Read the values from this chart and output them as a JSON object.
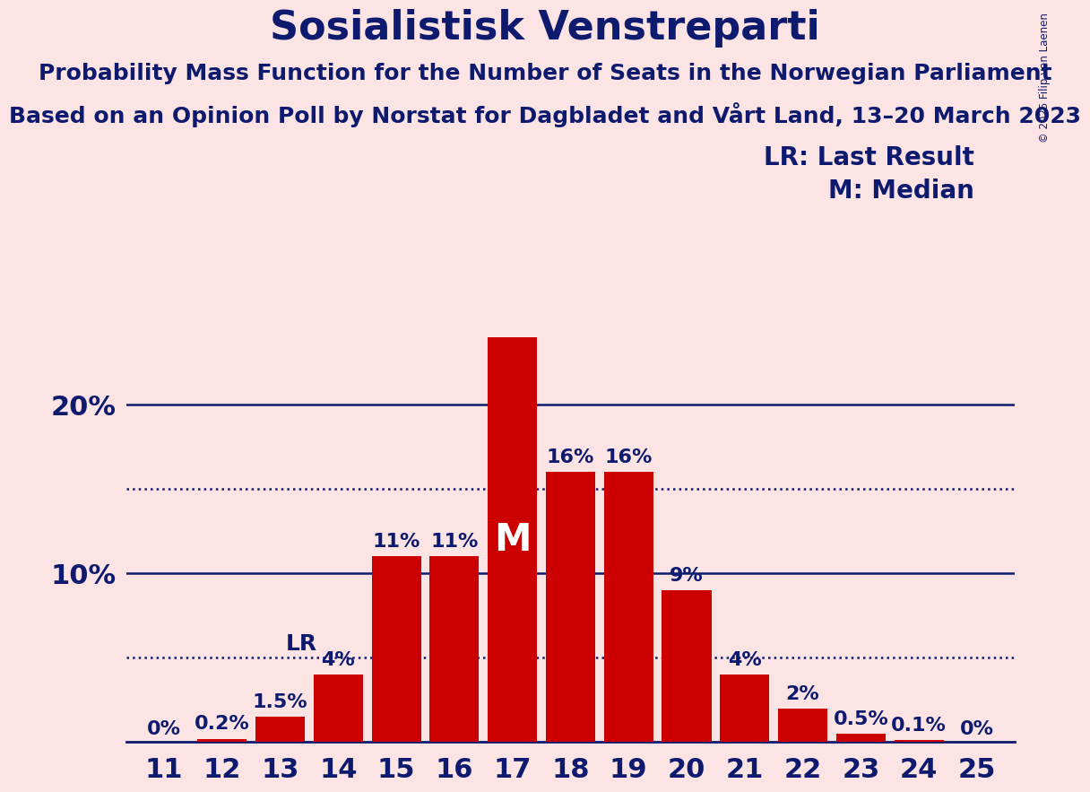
{
  "title": "Sosialistisk Venstreparti",
  "subtitle1": "Probability Mass Function for the Number of Seats in the Norwegian Parliament",
  "subtitle2": "Based on an Opinion Poll by Norstat for Dagbladet and Vårt Land, 13–20 March 2023",
  "copyright": "© 2025 Filip van Laenen",
  "seats": [
    11,
    12,
    13,
    14,
    15,
    16,
    17,
    18,
    19,
    20,
    21,
    22,
    23,
    24,
    25
  ],
  "probabilities": [
    0.0,
    0.2,
    1.5,
    4.0,
    11.0,
    11.0,
    24.0,
    16.0,
    16.0,
    9.0,
    4.0,
    2.0,
    0.5,
    0.1,
    0.0
  ],
  "bar_labels": [
    "0%",
    "0.2%",
    "1.5%",
    "4%",
    "11%",
    "11%",
    "M",
    "16%",
    "16%",
    "9%",
    "4%",
    "2%",
    "0.5%",
    "0.1%",
    "0%"
  ],
  "bar_color": "#cc0000",
  "background_color": "#fce4e4",
  "text_color": "#0d1a6e",
  "lr_seat": 13,
  "lr_value": 5.0,
  "median_seat": 17,
  "legend_lr": "LR: Last Result",
  "legend_m": "M: Median",
  "title_fontsize": 32,
  "subtitle_fontsize": 18,
  "bar_label_fontsize": 16,
  "axis_label_fontsize": 22,
  "legend_fontsize": 20,
  "dotted_lines": [
    5.0,
    15.0
  ],
  "solid_lines": [
    10.0,
    20.0
  ],
  "ylim": [
    0,
    27
  ],
  "xlim": [
    10.35,
    25.65
  ]
}
